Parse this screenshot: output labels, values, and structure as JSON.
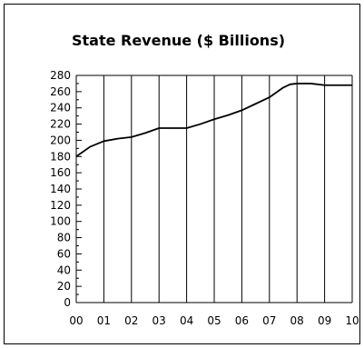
{
  "chart_data": {
    "type": "line",
    "title": "State Revenue ($ Billions)",
    "xlabel": "",
    "ylabel": "",
    "x_tick_labels": [
      "00",
      "01",
      "02",
      "03",
      "04",
      "05",
      "06",
      "07",
      "08",
      "09",
      "10"
    ],
    "y_tick_labels": [
      "0",
      "20",
      "40",
      "60",
      "80",
      "100",
      "120",
      "140",
      "160",
      "180",
      "200",
      "220",
      "240",
      "260",
      "280"
    ],
    "ylim": [
      0,
      280
    ],
    "xlim": [
      0,
      10
    ],
    "grid": true,
    "series": [
      {
        "x": [
          0,
          0.5,
          1,
          1.5,
          2,
          2.5,
          3,
          3.5,
          4,
          4.5,
          5,
          5.5,
          6,
          6.5,
          7,
          7.5,
          7.75,
          8,
          8.5,
          9,
          9.5,
          10
        ],
        "y": [
          180,
          192,
          199,
          202,
          204,
          209,
          215,
          215,
          215,
          220,
          226,
          231,
          237,
          245,
          253,
          265,
          269,
          270,
          270,
          268,
          268,
          268
        ]
      }
    ],
    "colors": {
      "line": "#000000",
      "grid": "#000000",
      "frame": "#000000"
    }
  }
}
